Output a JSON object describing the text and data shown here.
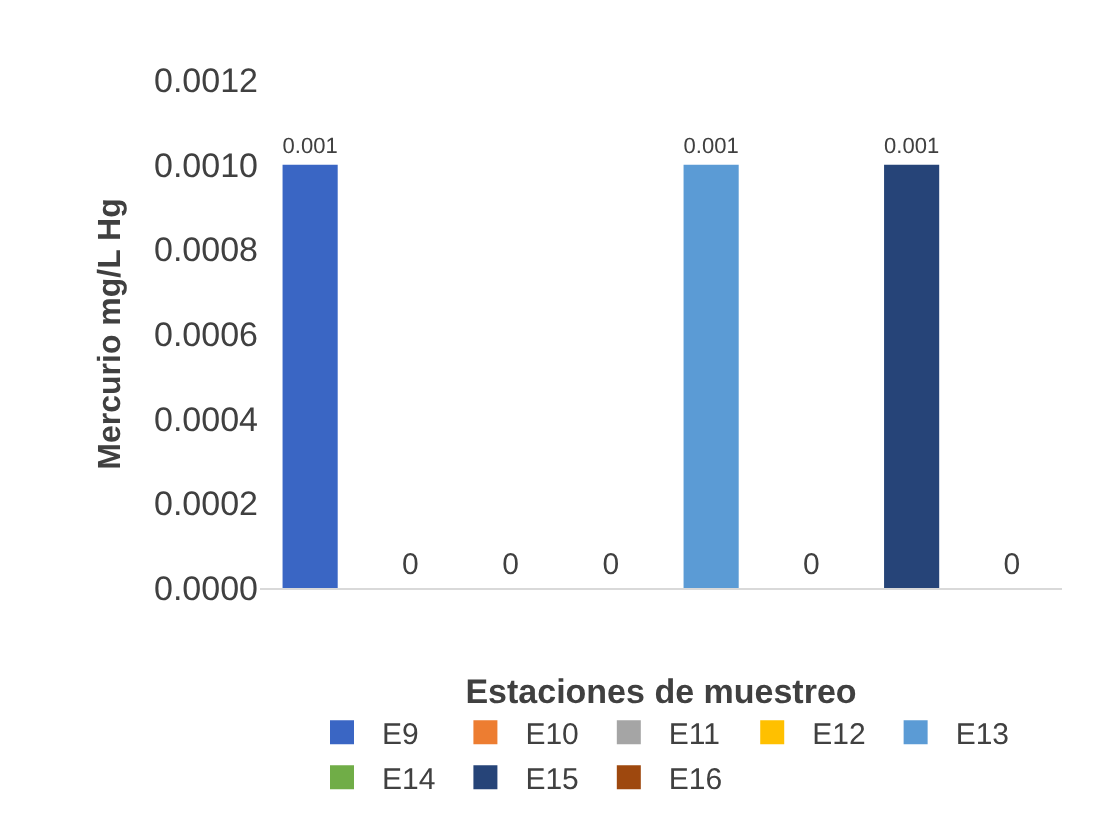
{
  "chart_data": {
    "type": "bar",
    "xlabel": "Estaciones de muestreo",
    "ylabel": "Mercurio mg/L Hg",
    "categories": [
      null,
      null,
      null,
      null,
      null,
      null,
      null,
      null
    ],
    "series": [
      {
        "name": "E9",
        "color": "#3a66c4",
        "values": [
          0.001,
          null,
          null,
          null,
          null,
          null,
          null,
          null
        ]
      },
      {
        "name": "E10",
        "color": "#ed7d31",
        "values": [
          null,
          0,
          null,
          null,
          null,
          null,
          null,
          null
        ]
      },
      {
        "name": "E11",
        "color": "#a5a5a5",
        "values": [
          null,
          null,
          0,
          null,
          null,
          null,
          null,
          null
        ]
      },
      {
        "name": "E12",
        "color": "#ffc000",
        "values": [
          null,
          null,
          null,
          0,
          null,
          null,
          null,
          null
        ]
      },
      {
        "name": "E13",
        "color": "#5b9bd5",
        "values": [
          null,
          null,
          null,
          null,
          0.001,
          null,
          null,
          null
        ]
      },
      {
        "name": "E14",
        "color": "#70ad47",
        "values": [
          null,
          null,
          null,
          null,
          null,
          0,
          null,
          null
        ]
      },
      {
        "name": "E15",
        "color": "#264478",
        "values": [
          null,
          null,
          null,
          null,
          null,
          null,
          0.001,
          null
        ]
      },
      {
        "name": "E16",
        "color": "#9e480e",
        "values": [
          null,
          null,
          null,
          null,
          null,
          null,
          null,
          0
        ]
      }
    ],
    "ylim": [
      0,
      0.0012
    ],
    "yticks": [
      {
        "value": 0,
        "label": "0.0000"
      },
      {
        "value": 0.0002,
        "label": "0.0002"
      },
      {
        "value": 0.0004,
        "label": "0.0004"
      },
      {
        "value": 0.0006,
        "label": "0.0006"
      },
      {
        "value": 0.0008,
        "label": "0.0008"
      },
      {
        "value": 0.001,
        "label": "0.0010"
      },
      {
        "value": 0.0012,
        "label": "0.0012"
      }
    ],
    "data_labels": true,
    "legend": "bottom",
    "grid": false,
    "tick_labels": "y"
  }
}
